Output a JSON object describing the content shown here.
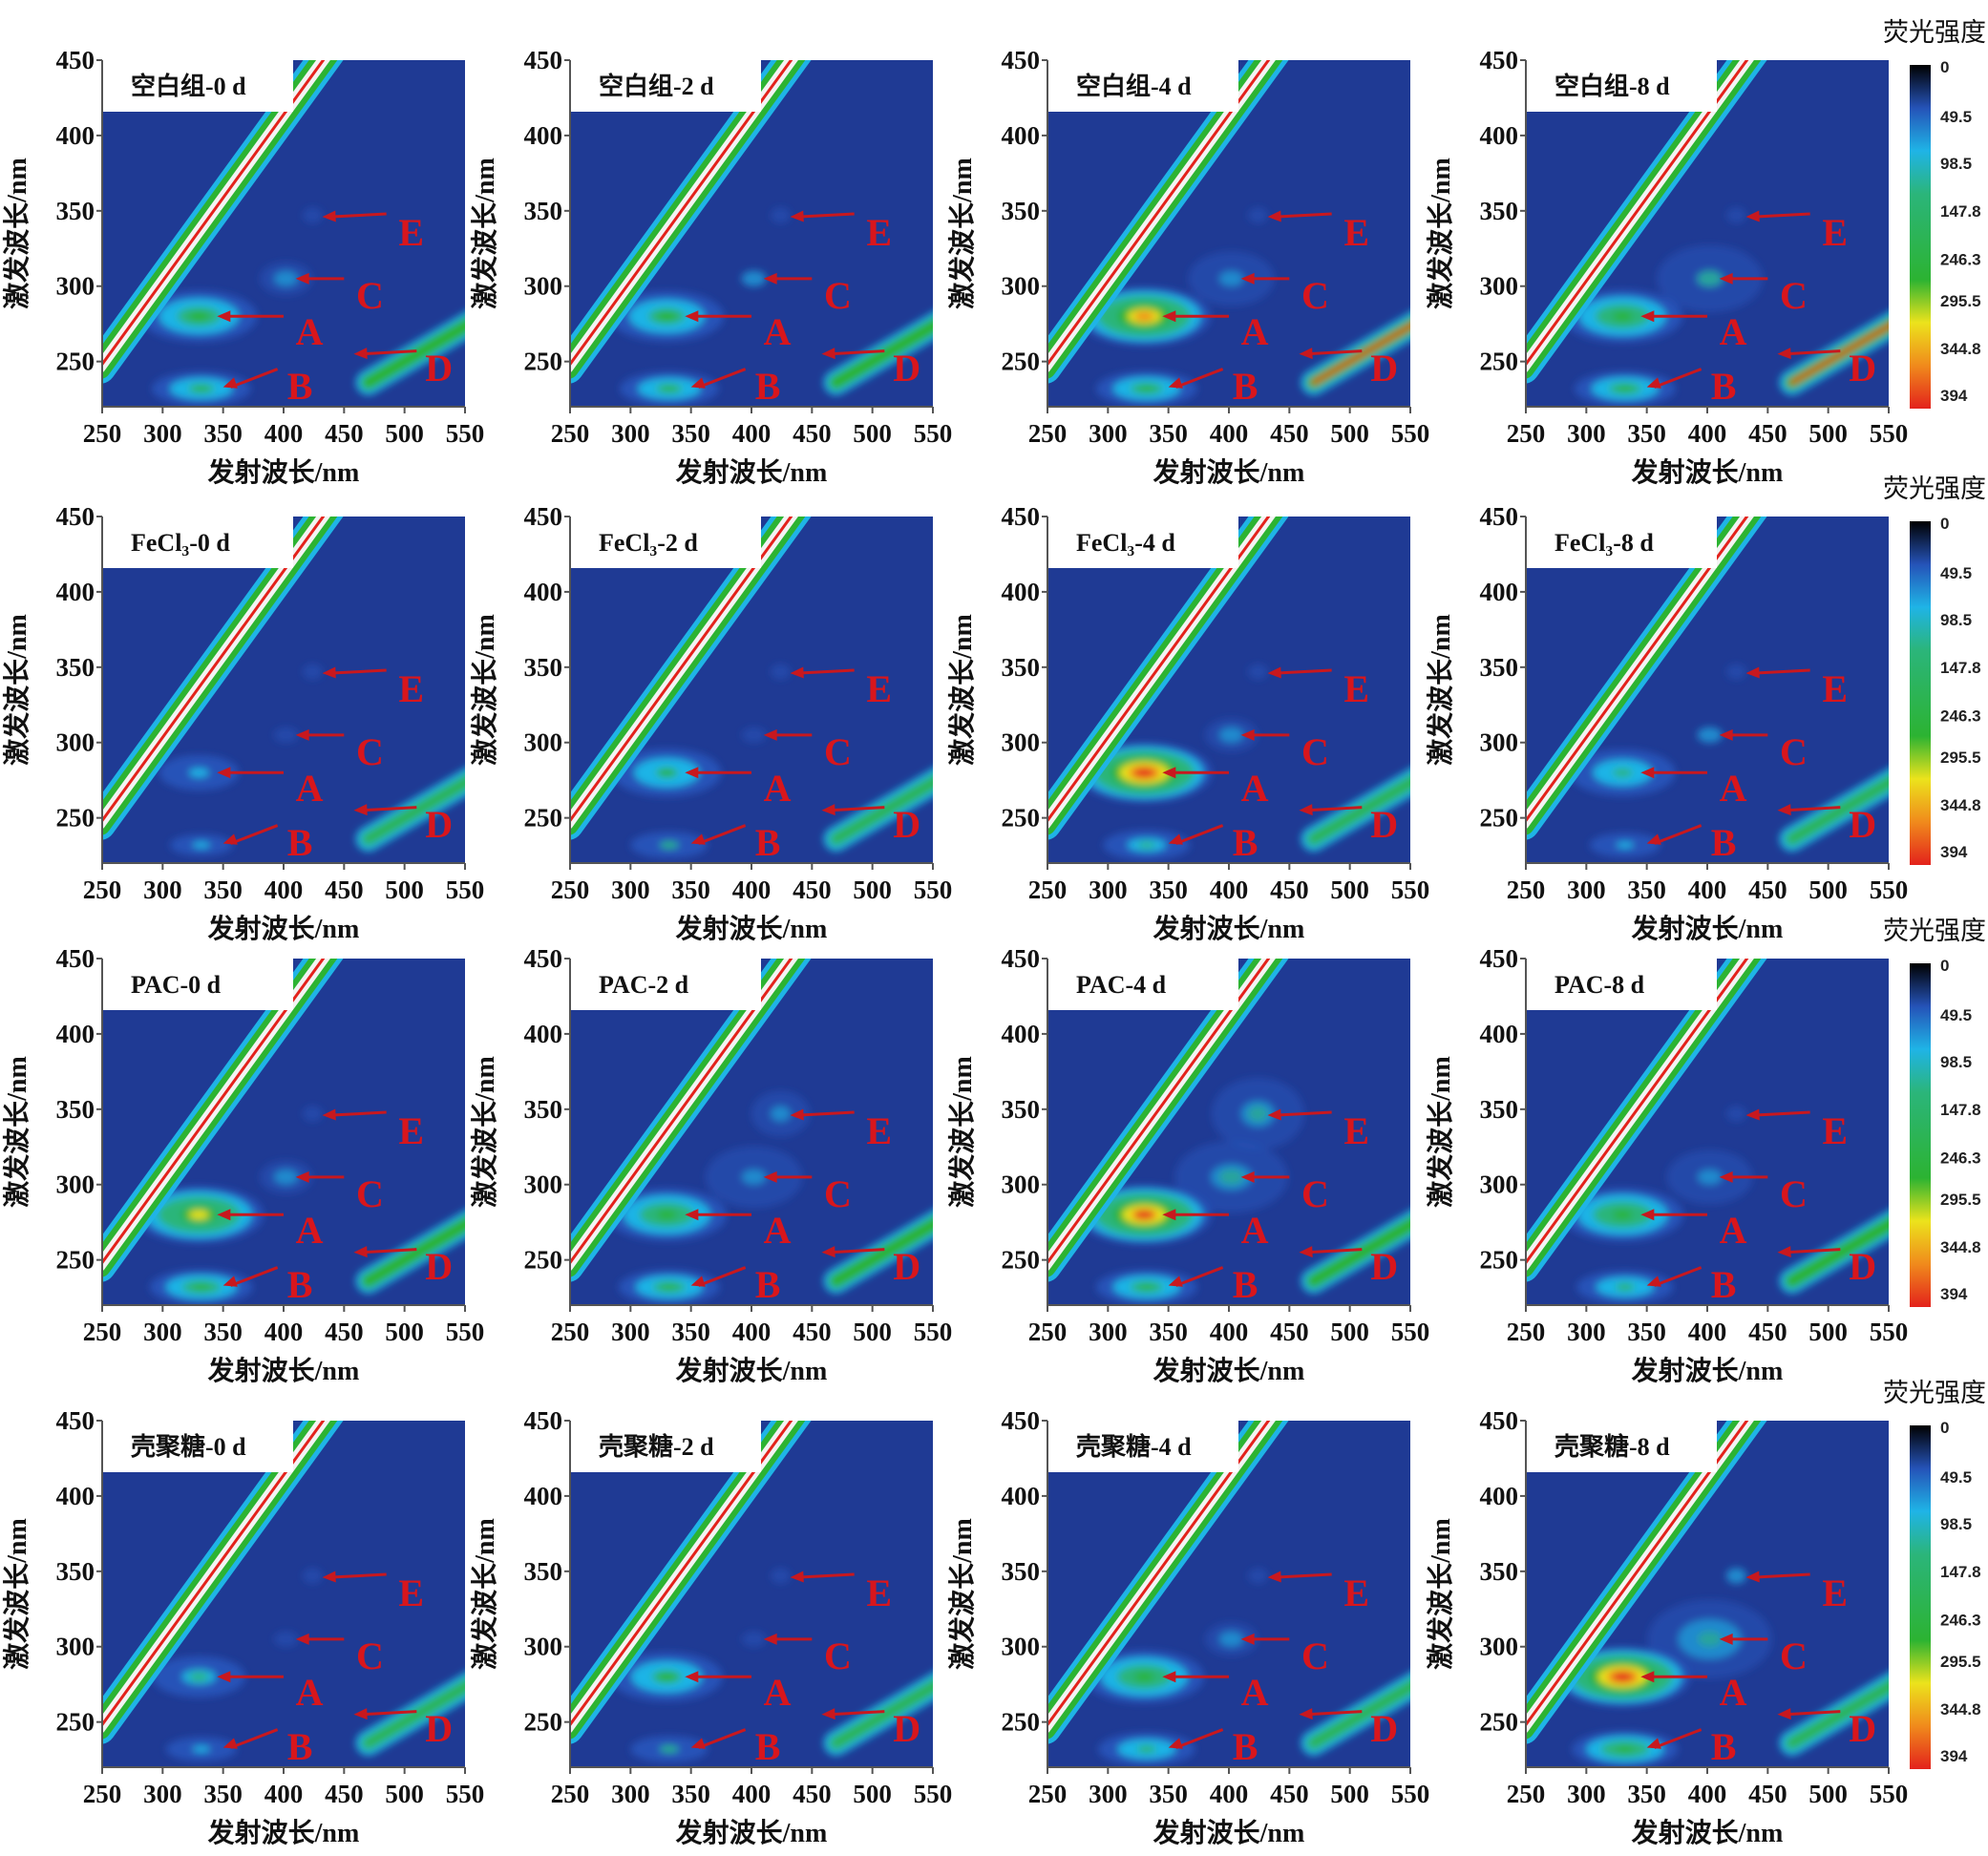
{
  "chart_data": {
    "type": "heatmap",
    "description_axes": {
      "xlabel": "发射波长/nm",
      "ylabel": "激发波长/nm",
      "xlim": [
        250,
        550
      ],
      "ylim": [
        220,
        450
      ],
      "xticks": [
        250,
        300,
        350,
        400,
        450,
        500,
        550
      ],
      "yticks": [
        250,
        300,
        350,
        400,
        450
      ]
    },
    "colorbar": {
      "title": "荧光强度",
      "ticks": [
        "0",
        "49.5",
        "98.5",
        "147.8",
        "246.3",
        "295.5",
        "344.8",
        "394"
      ],
      "values": [
        0,
        49.5,
        98.5,
        147.8,
        246.3,
        295.5,
        344.8,
        394
      ],
      "colors": [
        "#000000",
        "#2553b8",
        "#1fb4e6",
        "#2bb57a",
        "#2cb332",
        "#ece31c",
        "#f08a1c",
        "#e3221c"
      ],
      "background": "#1f3a94"
    },
    "peak_labels": [
      "A",
      "B",
      "C",
      "D",
      "E"
    ],
    "peak_positions_ex_em": {
      "A": [
        280,
        340
      ],
      "B": [
        232,
        340
      ],
      "C": [
        305,
        410
      ],
      "D": [
        255,
        460
      ],
      "E": [
        347,
        432
      ]
    },
    "panels": [
      {
        "title": "空白组-0 d",
        "A": 180,
        "B": 160,
        "C": 60,
        "D": 150,
        "E": 30
      },
      {
        "title": "空白组-2 d",
        "A": 170,
        "B": 160,
        "C": 50,
        "D": 150,
        "E": 30
      },
      {
        "title": "空白组-4 d",
        "A": 330,
        "B": 170,
        "C": 80,
        "D": 200,
        "E": 40
      },
      {
        "title": "空白组-8 d",
        "A": 200,
        "B": 170,
        "C": 100,
        "D": 200,
        "E": 40
      },
      {
        "title": "FeCl₃-0 d",
        "A": 90,
        "B": 80,
        "C": 40,
        "D": 110,
        "E": 30
      },
      {
        "title": "FeCl₃-2 d",
        "A": 150,
        "B": 100,
        "C": 40,
        "D": 110,
        "E": 30
      },
      {
        "title": "FeCl₃-4 d",
        "A": 380,
        "B": 120,
        "C": 60,
        "D": 110,
        "E": 40
      },
      {
        "title": "FeCl₃-8 d",
        "A": 140,
        "B": 90,
        "C": 50,
        "D": 110,
        "E": 30
      },
      {
        "title": "PAC-0 d",
        "A": 280,
        "B": 180,
        "C": 60,
        "D": 180,
        "E": 40
      },
      {
        "title": "PAC-2 d",
        "A": 200,
        "B": 170,
        "C": 90,
        "D": 160,
        "E": 70
      },
      {
        "title": "PAC-4 d",
        "A": 360,
        "B": 170,
        "C": 110,
        "D": 160,
        "E": 110
      },
      {
        "title": "PAC-8 d",
        "A": 210,
        "B": 150,
        "C": 80,
        "D": 160,
        "E": 40
      },
      {
        "title": "壳聚糖-0 d",
        "A": 110,
        "B": 90,
        "C": 40,
        "D": 120,
        "E": 30
      },
      {
        "title": "壳聚糖-2 d",
        "A": 160,
        "B": 100,
        "C": 40,
        "D": 120,
        "E": 30
      },
      {
        "title": "壳聚糖-4 d",
        "A": 200,
        "B": 150,
        "C": 60,
        "D": 140,
        "E": 40
      },
      {
        "title": "壳聚糖-8 d",
        "A": 380,
        "B": 200,
        "C": 130,
        "D": 140,
        "E": 50
      }
    ]
  }
}
